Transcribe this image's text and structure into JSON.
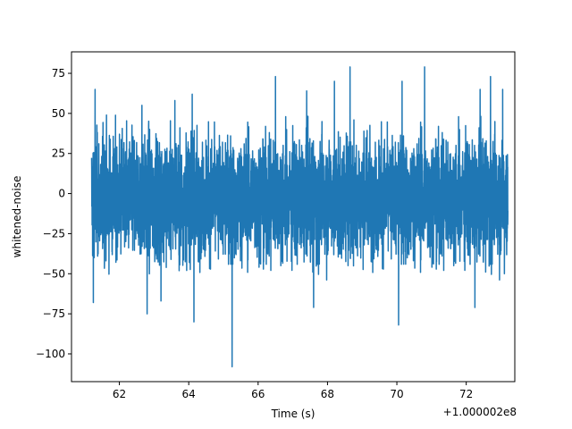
{
  "chart_data": {
    "type": "line",
    "title": "",
    "xlabel": "Time (s)",
    "ylabel": "whitened-noise",
    "x_offset_label": "+1.000002e8",
    "xlim": [
      60.62,
      73.4
    ],
    "ylim": [
      -117.3,
      88.4
    ],
    "x_range": [
      61.2,
      73.2
    ],
    "x_ticks": [
      62,
      64,
      66,
      68,
      70,
      72
    ],
    "y_ticks": [
      -100,
      -75,
      -50,
      -25,
      0,
      25,
      50,
      75
    ],
    "grid": false,
    "series": [
      {
        "color": "#1f77b4",
        "typical_range": [
          -45,
          40
        ],
        "peaks": [
          {
            "x": 61.25,
            "y": -68
          },
          {
            "x": 61.3,
            "y": 65
          },
          {
            "x": 62.65,
            "y": 55
          },
          {
            "x": 62.8,
            "y": -75
          },
          {
            "x": 63.2,
            "y": -67
          },
          {
            "x": 63.6,
            "y": 58
          },
          {
            "x": 64.1,
            "y": 62
          },
          {
            "x": 64.15,
            "y": -80
          },
          {
            "x": 65.25,
            "y": -108
          },
          {
            "x": 66.5,
            "y": 73
          },
          {
            "x": 67.4,
            "y": 64
          },
          {
            "x": 67.6,
            "y": -71
          },
          {
            "x": 68.2,
            "y": 70
          },
          {
            "x": 68.65,
            "y": 79
          },
          {
            "x": 70.05,
            "y": -82
          },
          {
            "x": 70.15,
            "y": 70
          },
          {
            "x": 70.8,
            "y": 79
          },
          {
            "x": 72.25,
            "y": -71
          },
          {
            "x": 72.4,
            "y": 65
          },
          {
            "x": 72.7,
            "y": 73
          },
          {
            "x": 73.05,
            "y": 65
          },
          {
            "x": 73.1,
            "y": -50
          }
        ]
      }
    ]
  }
}
